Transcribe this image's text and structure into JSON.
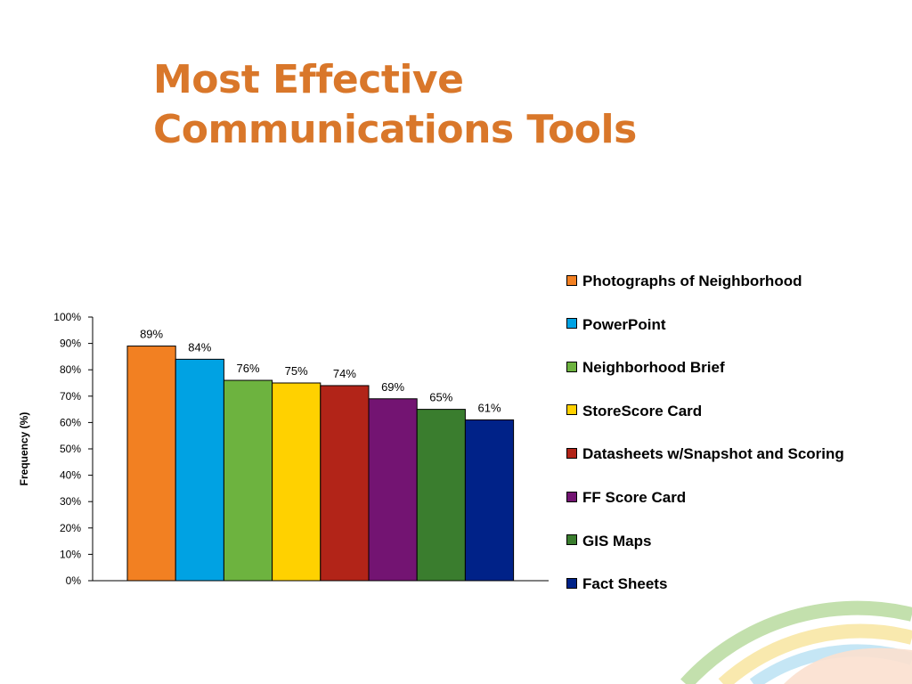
{
  "title_line1": "Most Effective",
  "title_line2": "Communications Tools",
  "chart_data": {
    "type": "bar",
    "title": "Most Effective Communications Tools",
    "ylabel": "Frequency (%)",
    "xlabel": "",
    "ylim": [
      0,
      100
    ],
    "y_ticks": [
      "0%",
      "10%",
      "20%",
      "30%",
      "40%",
      "50%",
      "60%",
      "70%",
      "80%",
      "90%",
      "100%"
    ],
    "legend_position": "right",
    "grid": false,
    "series": [
      {
        "name": "Photographs of Neighborhood",
        "value": 89,
        "label": "89%",
        "color": "#f28022"
      },
      {
        "name": "PowerPoint",
        "value": 84,
        "label": "84%",
        "color": "#00a2e3"
      },
      {
        "name": "Neighborhood Brief",
        "value": 76,
        "label": "76%",
        "color": "#6db33f"
      },
      {
        "name": "StoreScore Card",
        "value": 75,
        "label": "75%",
        "color": "#ffd100"
      },
      {
        "name": "Datasheets w/Snapshot and Scoring",
        "value": 74,
        "label": "74%",
        "color": "#b22418"
      },
      {
        "name": "FF Score Card",
        "value": 69,
        "label": "69%",
        "color": "#731472"
      },
      {
        "name": "GIS Maps",
        "value": 65,
        "label": "65%",
        "color": "#3a7d2e"
      },
      {
        "name": "Fact Sheets",
        "value": 61,
        "label": "61%",
        "color": "#002288"
      }
    ]
  }
}
